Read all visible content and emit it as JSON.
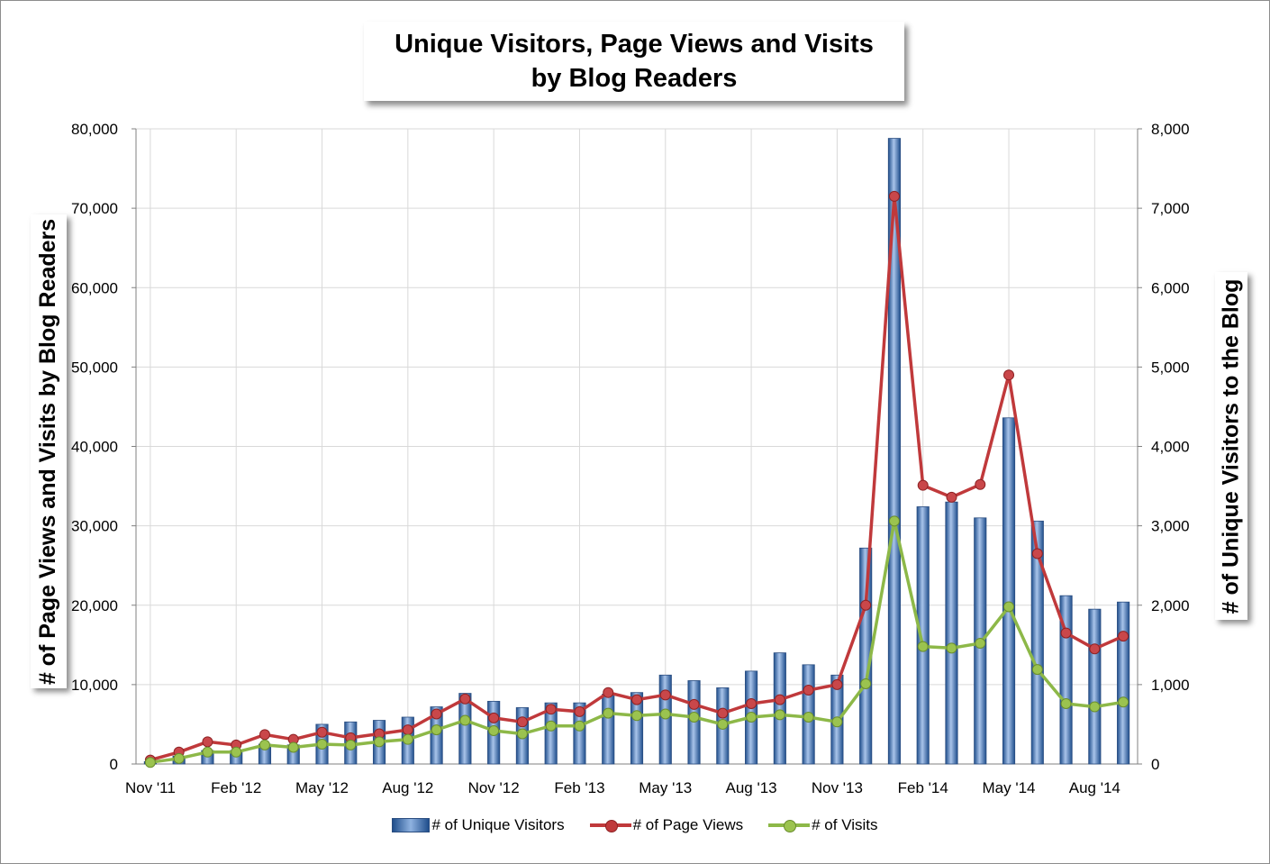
{
  "colors": {
    "bars": "#4a76b8",
    "bars_light": "#a9c4ea",
    "bars_dark": "#1f4e8c",
    "page_views": "#c0393b",
    "visits": "#8db848",
    "grid": "#d9d9d9"
  },
  "chart_data": {
    "type": "bar+line",
    "title": [
      "Unique Visitors, Page Views and Visits",
      "by Blog Readers"
    ],
    "ylabel_left": "# of Page Views and Visits by Blog Readers",
    "ylabel_right": "# of Unique Visitors to the Blog",
    "yleft_range": [
      0,
      80000
    ],
    "yright_range": [
      0,
      8000
    ],
    "yleft_ticks": [
      "0",
      "10,000",
      "20,000",
      "30,000",
      "40,000",
      "50,000",
      "60,000",
      "70,000",
      "80,000"
    ],
    "yright_ticks": [
      "0",
      "1,000",
      "2,000",
      "3,000",
      "4,000",
      "5,000",
      "6,000",
      "7,000",
      "8,000"
    ],
    "x_tick_labels": [
      "Nov '11",
      "Feb '12",
      "May '12",
      "Aug '12",
      "Nov '12",
      "Feb '13",
      "May '13",
      "Aug '13",
      "Nov '13",
      "Feb '14",
      "May '14",
      "Aug '14"
    ],
    "categories": [
      "Nov 11",
      "Dec 11",
      "Jan 12",
      "Feb 12",
      "Mar 12",
      "Apr 12",
      "May 12",
      "Jun 12",
      "Jul 12",
      "Aug 12",
      "Sep 12",
      "Oct 12",
      "Nov 12",
      "Dec 12",
      "Jan 13",
      "Feb 13",
      "Mar 13",
      "Apr 13",
      "May 13",
      "Jun 13",
      "Jul 13",
      "Aug 13",
      "Sep 13",
      "Oct 13",
      "Nov 13",
      "Dec 13",
      "Jan 14",
      "Feb 14",
      "Mar 14",
      "Apr 14",
      "May 14",
      "Jun 14",
      "Jul 14",
      "Aug 14",
      "Sep 14"
    ],
    "legend_position": "bottom",
    "series": [
      {
        "name": "# of Unique Visitors",
        "kind": "bar",
        "axis": "right",
        "values": [
          30,
          100,
          170,
          170,
          250,
          240,
          500,
          530,
          550,
          590,
          720,
          890,
          790,
          710,
          770,
          770,
          880,
          900,
          1120,
          1050,
          960,
          1170,
          1400,
          1250,
          1120,
          2720,
          7880,
          3240,
          3300,
          3100,
          4360,
          3060,
          2120,
          1950,
          2040
        ]
      },
      {
        "name": "# of Page Views",
        "kind": "line",
        "axis": "left",
        "values": [
          500,
          1500,
          2800,
          2400,
          3700,
          3100,
          4000,
          3300,
          3800,
          4300,
          6300,
          8200,
          5800,
          5300,
          6900,
          6600,
          9000,
          8100,
          8700,
          7500,
          6400,
          7600,
          8100,
          9300,
          10000,
          20000,
          71500,
          35100,
          33600,
          35200,
          49000,
          26500,
          16500,
          14500,
          16100
        ]
      },
      {
        "name": "# of Visits",
        "kind": "line",
        "axis": "left",
        "values": [
          200,
          700,
          1500,
          1500,
          2400,
          2100,
          2500,
          2400,
          2800,
          3100,
          4300,
          5500,
          4200,
          3800,
          4800,
          4800,
          6400,
          6100,
          6300,
          5900,
          5000,
          5900,
          6200,
          5900,
          5300,
          10100,
          30600,
          14800,
          14600,
          15200,
          19800,
          11900,
          7600,
          7200,
          7800
        ]
      }
    ]
  }
}
